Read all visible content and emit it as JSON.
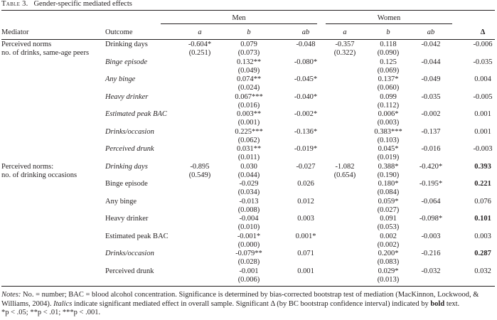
{
  "caption": {
    "number": "Table 3.",
    "title": "Gender-specific mediated effects"
  },
  "header": {
    "men": "Men",
    "women": "Women",
    "mediator": "Mediator",
    "outcome": "Outcome",
    "a": "a",
    "b": "b",
    "ab": "ab",
    "delta": "Δ"
  },
  "groups": [
    {
      "mediator": [
        "Perceived norms",
        "no. of drinks, same-age peers"
      ],
      "men_a": [
        "-0.604*",
        "(0.251)"
      ],
      "women_a": [
        "-0.357",
        "(0.322)"
      ],
      "rows": [
        {
          "outcome": "Drinking days",
          "italic": false,
          "men_b": [
            "0.079",
            "(0.073)"
          ],
          "men_ab": "-0.048",
          "women_b": [
            "0.118",
            "(0.090)"
          ],
          "women_ab": "-0.042",
          "delta": "-0.006",
          "bold": false
        },
        {
          "outcome": "Binge episode",
          "italic": true,
          "men_b": [
            "0.132**",
            "(0.049)"
          ],
          "men_ab": "-0.080*",
          "women_b": [
            "0.125",
            "(0.069)"
          ],
          "women_ab": "-0.044",
          "delta": "-0.035",
          "bold": false
        },
        {
          "outcome": "Any binge",
          "italic": true,
          "men_b": [
            "0.074**",
            "(0.024)"
          ],
          "men_ab": "-0.045*",
          "women_b": [
            "0.137*",
            "(0.060)"
          ],
          "women_ab": "-0.049",
          "delta": "0.004",
          "bold": false
        },
        {
          "outcome": "Heavy drinker",
          "italic": true,
          "men_b": [
            "0.067***",
            "(0.016)"
          ],
          "men_ab": "-0.040*",
          "women_b": [
            "0.099",
            "(0.112)"
          ],
          "women_ab": "-0.035",
          "delta": "-0.005",
          "bold": false
        },
        {
          "outcome": "Estimated peak BAC",
          "italic": true,
          "men_b": [
            "0.003**",
            "(0.001)"
          ],
          "men_ab": "-0.002*",
          "women_b": [
            "0.006*",
            "(0.003)"
          ],
          "women_ab": "-0.002",
          "delta": "0.001",
          "bold": false
        },
        {
          "outcome": "Drinks/occasion",
          "italic": true,
          "men_b": [
            "0.225***",
            "(0.062)"
          ],
          "men_ab": "-0.136*",
          "women_b": [
            "0.383***",
            "(0.103)"
          ],
          "women_ab": "-0.137",
          "delta": "0.001",
          "bold": false
        },
        {
          "outcome": "Perceived drunk",
          "italic": true,
          "men_b": [
            "0.031**",
            "(0.011)"
          ],
          "men_ab": "-0.019*",
          "women_b": [
            "0.045*",
            "(0.019)"
          ],
          "women_ab": "-0.016",
          "delta": "-0.003",
          "bold": false
        }
      ]
    },
    {
      "mediator": [
        "Perceived norms:",
        "no. of drinking occasions"
      ],
      "men_a": [
        "-0.895",
        "(0.549)"
      ],
      "women_a": [
        "-1.082",
        "(0.654)"
      ],
      "rows": [
        {
          "outcome": "Drinking days",
          "italic": true,
          "men_b": [
            "0.030",
            "(0.044)"
          ],
          "men_ab": "-0.027",
          "women_b": [
            "0.388*",
            "(0.190)"
          ],
          "women_ab": "-0.420*",
          "delta": "0.393",
          "bold": true
        },
        {
          "outcome": "Binge episode",
          "italic": false,
          "men_b": [
            "-0.029",
            "(0.034)"
          ],
          "men_ab": "0.026",
          "women_b": [
            "0.180*",
            "(0.084)"
          ],
          "women_ab": "-0.195*",
          "delta": "0.221",
          "bold": true
        },
        {
          "outcome": "Any binge",
          "italic": false,
          "men_b": [
            "-0.013",
            "(0.008)"
          ],
          "men_ab": "0.012",
          "women_b": [
            "0.059*",
            "(0.027)"
          ],
          "women_ab": "-0.064",
          "delta": "0.076",
          "bold": false
        },
        {
          "outcome": "Heavy drinker",
          "italic": false,
          "men_b": [
            "-0.004",
            "(0.010)"
          ],
          "men_ab": "0.003",
          "women_b": [
            "0.091",
            "(0.053)"
          ],
          "women_ab": "-0.098*",
          "delta": "0.101",
          "bold": true
        },
        {
          "outcome": "Estimated peak BAC",
          "italic": false,
          "men_b": [
            "-0.001*",
            "(0.000)"
          ],
          "men_ab": "0.001*",
          "women_b": [
            "0.002",
            "(0.002)"
          ],
          "women_ab": "-0.003",
          "delta": "0.003",
          "bold": false
        },
        {
          "outcome": "Drinks/occasion",
          "italic": true,
          "men_b": [
            "-0.079**",
            "(0.028)"
          ],
          "men_ab": "0.071",
          "women_b": [
            "0.200*",
            "(0.083)"
          ],
          "women_ab": "-0.216",
          "delta": "0.287",
          "bold": true
        },
        {
          "outcome": "Perceived drunk",
          "italic": false,
          "men_b": [
            "-0.001",
            "(0.006)"
          ],
          "men_ab": "0.001",
          "women_b": [
            "0.029*",
            "(0.013)"
          ],
          "women_ab": "-0.032",
          "delta": "0.032",
          "bold": false
        }
      ]
    }
  ],
  "notes": {
    "label": "Notes:",
    "text1": " No. = number; BAC = blood alcohol concentration. Significance is determined by bias-corrected bootstrap test of mediation (MacKinnon, Lockwood, & Williams, 2004). ",
    "italics_word": "Italics",
    "text2": " indicate significant mediated effect in overall sample. Significant Δ (by BC bootstrap confidence interval) indicated by ",
    "bold_word": "bold",
    "text3": " text.",
    "sig": "*p < .05; **p < .01; ***p < .001."
  }
}
